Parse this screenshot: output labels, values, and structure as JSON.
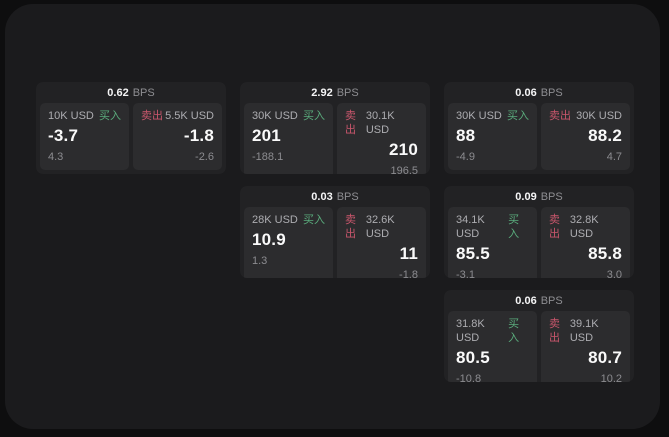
{
  "labels": {
    "buy": "买入",
    "sell": "卖出",
    "bps_unit": "BPS"
  },
  "colors": {
    "buy_green": "#5aab7c",
    "sell_red": "#c9566c",
    "panel_bg": "#2c2c2e",
    "card_bg": "#222224",
    "container_bg": "#1b1b1d",
    "page_bg": "#0e0e0f"
  },
  "cards": [
    {
      "spread": "0.62",
      "buy": {
        "amount": "10K USD",
        "price": "-3.7",
        "sub_value": "4.3"
      },
      "sell": {
        "amount": "5.5K USD",
        "price": "-1.8",
        "sub_value": "-2.6"
      }
    },
    {
      "spread": "2.92",
      "buy": {
        "amount": "30K USD",
        "price": "201",
        "sub_value": "-188.1"
      },
      "sell": {
        "amount": "30.1K USD",
        "price": "210",
        "sub_value": "196.5"
      }
    },
    {
      "spread": "0.06",
      "buy": {
        "amount": "30K USD",
        "price": "88",
        "sub_value": "-4.9"
      },
      "sell": {
        "amount": "30K USD",
        "price": "88.2",
        "sub_value": "4.7"
      }
    },
    {
      "spread": "0.03",
      "buy": {
        "amount": "28K USD",
        "price": "10.9",
        "sub_value": "1.3"
      },
      "sell": {
        "amount": "32.6K USD",
        "price": "11",
        "sub_value": "-1.8"
      }
    },
    {
      "spread": "0.09",
      "buy": {
        "amount": "34.1K USD",
        "price": "85.5",
        "sub_value": "-3.1"
      },
      "sell": {
        "amount": "32.8K USD",
        "price": "85.8",
        "sub_value": "3.0"
      }
    },
    {
      "spread": "0.06",
      "buy": {
        "amount": "31.8K USD",
        "price": "80.5",
        "sub_value": "-10.8"
      },
      "sell": {
        "amount": "39.1K USD",
        "price": "80.7",
        "sub_value": "10.2"
      }
    }
  ]
}
